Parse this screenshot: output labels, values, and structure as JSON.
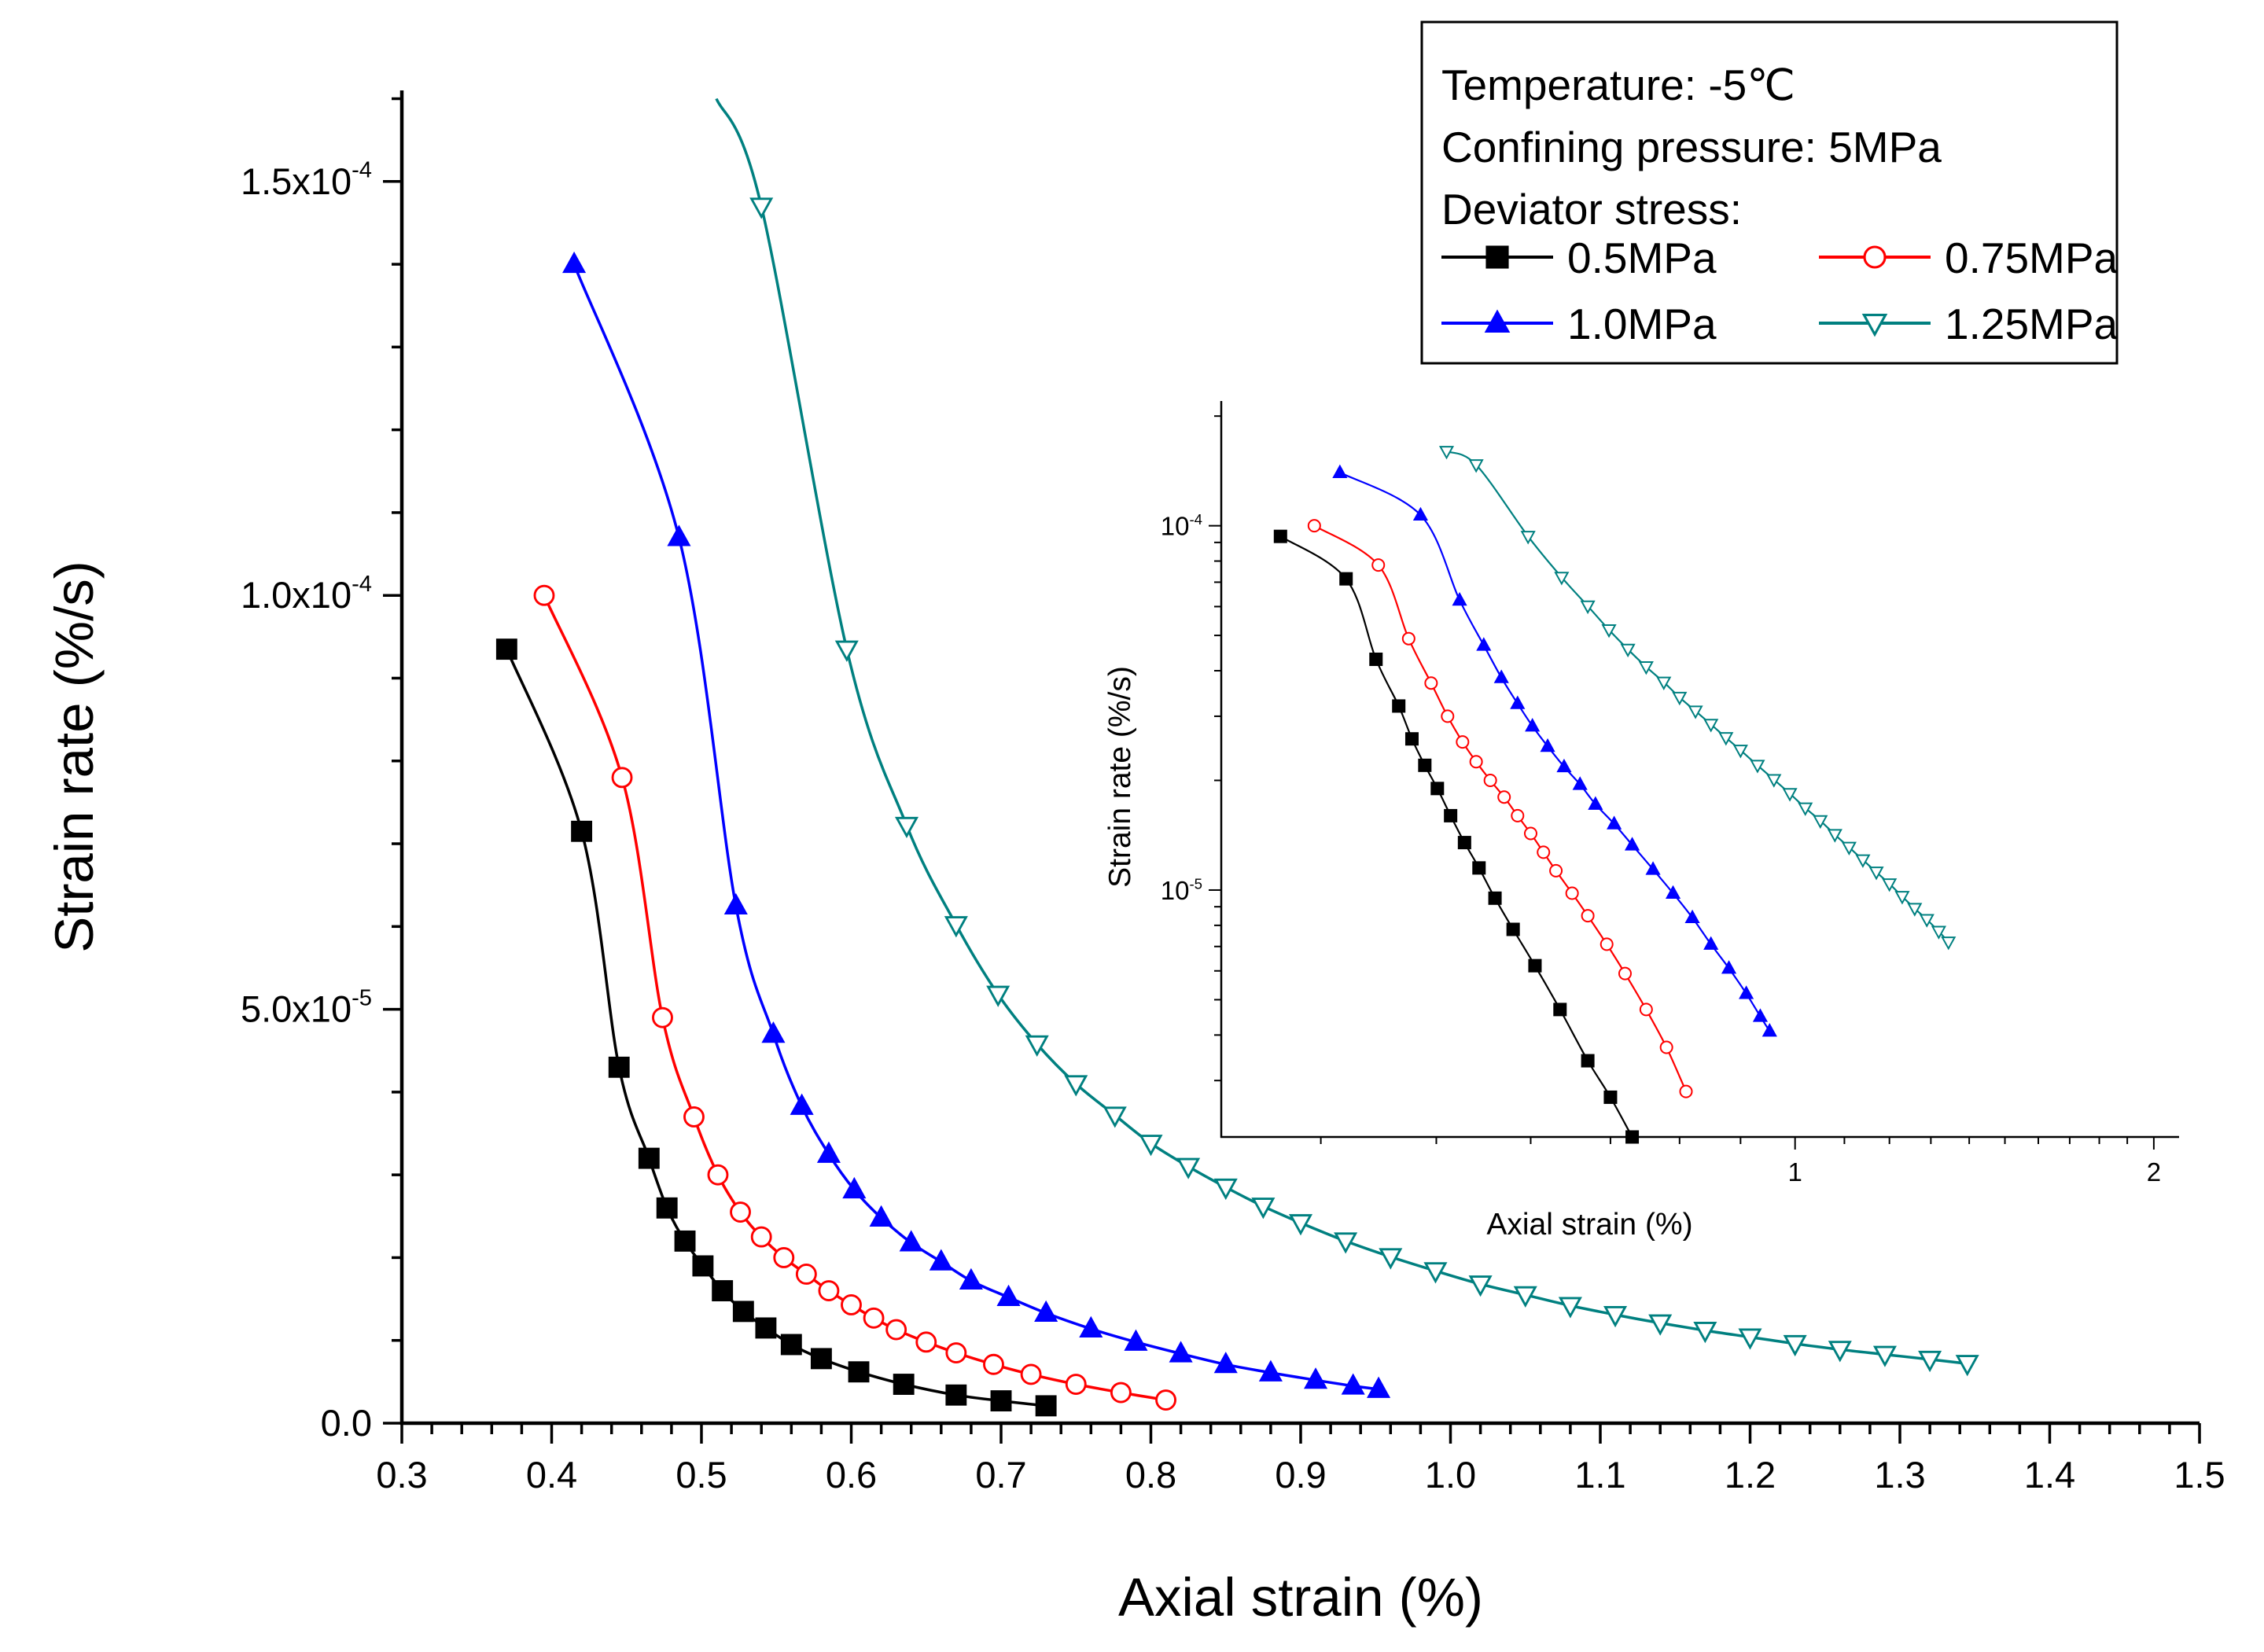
{
  "chart_data": [
    {
      "type": "line",
      "xlabel": "Axial strain (%)",
      "ylabel": "Strain rate (%/s)",
      "xlim": [
        0.3,
        1.5
      ],
      "ylim": [
        0,
        0.000161
      ],
      "xticks": [
        "0.3",
        "0.4",
        "0.5",
        "0.6",
        "0.7",
        "0.8",
        "0.9",
        "1.0",
        "1.1",
        "1.2",
        "1.3",
        "1.4",
        "1.5"
      ],
      "yticks": [
        {
          "value": 0,
          "label": "0.0",
          "exp": ""
        },
        {
          "value": 5e-05,
          "label": "5.0x10",
          "exp": "-5"
        },
        {
          "value": 0.0001,
          "label": "1.0x10",
          "exp": "-4"
        },
        {
          "value": 0.00015,
          "label": "1.5x10",
          "exp": "-4"
        }
      ],
      "legend": {
        "placement": "top-right",
        "lines": [
          "Temperature: -5℃",
          "Confining pressure: 5MPa",
          "Deviator stress:"
        ]
      },
      "series": [
        {
          "name": "0.5MPa",
          "color": "#000000",
          "marker": "square",
          "x": [
            0.37,
            0.42,
            0.445,
            0.465,
            0.477,
            0.489,
            0.501,
            0.514,
            0.528,
            0.543,
            0.56,
            0.58,
            0.605,
            0.635,
            0.67,
            0.7,
            0.73
          ],
          "y": [
            9.35e-05,
            7.15e-05,
            4.3e-05,
            3.2e-05,
            2.6e-05,
            2.2e-05,
            1.9e-05,
            1.6e-05,
            1.35e-05,
            1.15e-05,
            9.5e-06,
            7.8e-06,
            6.2e-06,
            4.7e-06,
            3.4e-06,
            2.7e-06,
            2.1e-06
          ]
        },
        {
          "name": "0.75MPa",
          "color": "#ff0000",
          "marker": "circle-open",
          "x": [
            0.395,
            0.447,
            0.474,
            0.495,
            0.511,
            0.526,
            0.54,
            0.555,
            0.57,
            0.585,
            0.6,
            0.615,
            0.63,
            0.65,
            0.67,
            0.695,
            0.72,
            0.75,
            0.78,
            0.81
          ],
          "y": [
            0.0001,
            7.8e-05,
            4.9e-05,
            3.7e-05,
            3e-05,
            2.55e-05,
            2.25e-05,
            2e-05,
            1.8e-05,
            1.6e-05,
            1.43e-05,
            1.27e-05,
            1.13e-05,
            9.8e-06,
            8.5e-06,
            7.1e-06,
            5.9e-06,
            4.7e-06,
            3.7e-06,
            2.8e-06
          ]
        },
        {
          "name": "1.0MPa",
          "color": "#0000ff",
          "marker": "triangle-up",
          "x": [
            0.415,
            0.485,
            0.523,
            0.548,
            0.567,
            0.585,
            0.602,
            0.62,
            0.64,
            0.66,
            0.68,
            0.705,
            0.73,
            0.76,
            0.79,
            0.82,
            0.85,
            0.88,
            0.91,
            0.935,
            0.952
          ],
          "y": [
            0.00014,
            0.000107,
            6.25e-05,
            4.7e-05,
            3.83e-05,
            3.25e-05,
            2.82e-05,
            2.48e-05,
            2.18e-05,
            1.95e-05,
            1.72e-05,
            1.52e-05,
            1.33e-05,
            1.14e-05,
            9.8e-06,
            8.4e-06,
            7.1e-06,
            6.1e-06,
            5.2e-06,
            4.5e-06,
            4.1e-06
          ]
        },
        {
          "name": "1.25MPa",
          "color": "#008080",
          "marker": "triangle-down-open",
          "x": [
            0.51,
            0.54,
            0.597,
            0.637,
            0.67,
            0.698,
            0.724,
            0.75,
            0.776,
            0.8,
            0.825,
            0.85,
            0.875,
            0.9,
            0.93,
            0.96,
            0.99,
            1.02,
            1.05,
            1.08,
            1.11,
            1.14,
            1.17,
            1.2,
            1.23,
            1.26,
            1.29,
            1.32,
            1.345
          ],
          "y": [
            0.00016,
            0.000147,
            9.35e-05,
            7.22e-05,
            6.02e-05,
            5.18e-05,
            4.58e-05,
            4.1e-05,
            3.72e-05,
            3.38e-05,
            3.1e-05,
            2.85e-05,
            2.62e-05,
            2.42e-05,
            2.2e-05,
            2.01e-05,
            1.84e-05,
            1.68e-05,
            1.55e-05,
            1.42e-05,
            1.31e-05,
            1.21e-05,
            1.12e-05,
            1.04e-05,
            9.6e-06,
            8.9e-06,
            8.3e-06,
            7.7e-06,
            7.2e-06
          ]
        }
      ]
    },
    {
      "type": "line",
      "xlabel": "Axial strain (%)",
      "ylabel": "Strain rate (%/s)",
      "xscale": "log",
      "yscale": "log",
      "xlim": [
        0.33,
        2.1
      ],
      "ylim": [
        2.1e-06,
        0.00022
      ],
      "xticks": [
        "1",
        "2"
      ],
      "yticks": [
        {
          "value": 0.0001,
          "label": "10",
          "exp": "-4"
        },
        {
          "value": 1e-05,
          "label": "10",
          "exp": "-5"
        }
      ]
    }
  ]
}
